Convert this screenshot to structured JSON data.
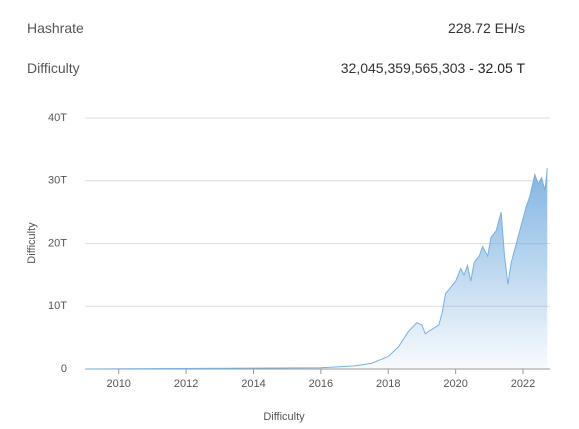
{
  "stats": [
    {
      "label": "Hashrate",
      "value": "228.72 EH/s"
    },
    {
      "label": "Difficulty",
      "value": "32,045,359,565,303",
      "short": "- 32.05 T"
    }
  ],
  "chart_data": {
    "type": "area",
    "ylabel": "Difficulty",
    "xlabel": "Difficulty",
    "color": "#7ab0e0",
    "x": [
      2009,
      2016,
      2017,
      2017.5,
      2018,
      2018.3,
      2018.6,
      2018.85,
      2019.0,
      2019.1,
      2019.2,
      2019.5,
      2019.6,
      2019.7,
      2019.85,
      2020.0,
      2020.15,
      2020.25,
      2020.35,
      2020.45,
      2020.55,
      2020.7,
      2020.8,
      2020.95,
      2021.05,
      2021.2,
      2021.35,
      2021.45,
      2021.55,
      2021.65,
      2021.8,
      2021.95,
      2022.1,
      2022.2,
      2022.35,
      2022.45,
      2022.55,
      2022.65,
      2022.72
    ],
    "values": [
      0,
      0.2,
      0.5,
      0.9,
      2,
      3.5,
      6,
      7.4,
      7,
      5.6,
      6,
      7,
      9,
      12,
      13,
      14,
      16,
      15,
      16.5,
      14,
      17,
      18,
      19.5,
      18,
      21,
      22,
      25,
      18,
      13.5,
      17,
      20,
      23,
      26,
      27.5,
      31,
      29.5,
      30.5,
      28.5,
      32.05
    ],
    "xlim": [
      2009,
      2022.8
    ],
    "xticks": [
      2010,
      2012,
      2014,
      2016,
      2018,
      2020,
      2022
    ],
    "ylim": [
      0,
      40
    ],
    "yticks": [
      0,
      {
        "value": 10,
        "label": "10T"
      },
      {
        "value": 20,
        "label": "20T"
      },
      {
        "value": 30,
        "label": "30T"
      },
      {
        "value": 40,
        "label": "40T"
      }
    ],
    "grid": true
  }
}
